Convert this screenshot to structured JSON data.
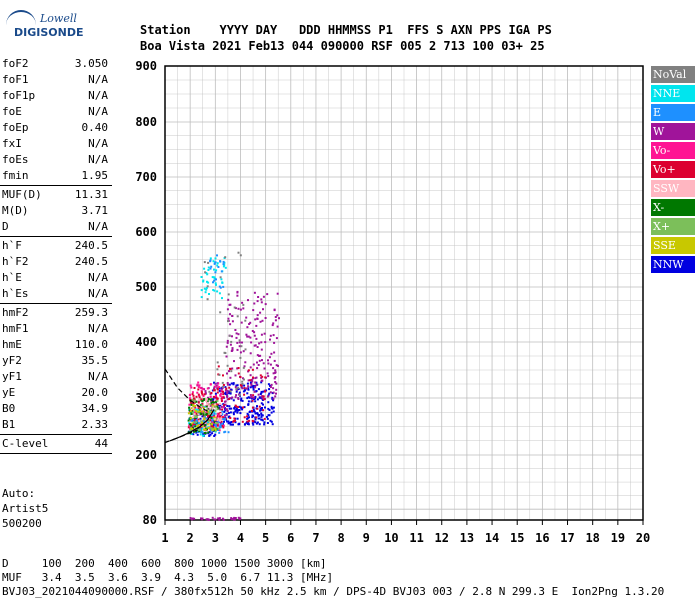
{
  "logo": {
    "top": "Lowell",
    "bottom": "DIGISONDE"
  },
  "header": {
    "line1": "Station    YYYY DAY   DDD HHMMSS P1  FFS S AXN PPS IGA PS",
    "line2": "Boa Vista 2021 Feb13 044 090000 RSF 005 2 713 100 03+ 25"
  },
  "params": [
    [
      {
        "k": "foF2",
        "v": "3.050"
      },
      {
        "k": "foF1",
        "v": "N/A"
      },
      {
        "k": "foF1p",
        "v": "N/A"
      },
      {
        "k": "foE",
        "v": "N/A"
      },
      {
        "k": "foEp",
        "v": "0.40"
      },
      {
        "k": "fxI",
        "v": "N/A"
      },
      {
        "k": "foEs",
        "v": "N/A"
      },
      {
        "k": "fmin",
        "v": "1.95"
      }
    ],
    [
      {
        "k": "MUF(D)",
        "v": "11.31"
      },
      {
        "k": "M(D)",
        "v": "3.71"
      },
      {
        "k": "D",
        "v": "N/A"
      }
    ],
    [
      {
        "k": "h`F",
        "v": "240.5"
      },
      {
        "k": "h`F2",
        "v": "240.5"
      },
      {
        "k": "h`E",
        "v": "N/A"
      },
      {
        "k": "h`Es",
        "v": "N/A"
      }
    ],
    [
      {
        "k": "hmF2",
        "v": "259.3"
      },
      {
        "k": "hmF1",
        "v": "N/A"
      },
      {
        "k": "hmE",
        "v": "110.0"
      },
      {
        "k": "yF2",
        "v": "35.5"
      },
      {
        "k": "yF1",
        "v": "N/A"
      },
      {
        "k": "yE",
        "v": "20.0"
      },
      {
        "k": "B0",
        "v": "34.9"
      },
      {
        "k": "B1",
        "v": "2.33"
      }
    ],
    [
      {
        "k": "C-level",
        "v": "44"
      }
    ]
  ],
  "auto": {
    "l1": "Auto:",
    "l2": "Artist5",
    "l3": "500200"
  },
  "legend": [
    {
      "label": "NoVal",
      "color": "#808080"
    },
    {
      "label": "NNE",
      "color": "#00e5ee"
    },
    {
      "label": "E",
      "color": "#1e90ff"
    },
    {
      "label": "W",
      "color": "#a0149a"
    },
    {
      "label": "Vo-",
      "color": "#ff1493"
    },
    {
      "label": "Vo+",
      "color": "#dc0030"
    },
    {
      "label": "SSW",
      "color": "#ffb6c1"
    },
    {
      "label": "X-",
      "color": "#007800"
    },
    {
      "label": "X+",
      "color": "#7cbf5a"
    },
    {
      "label": "SSE",
      "color": "#c8c800"
    },
    {
      "label": "NNW",
      "color": "#0000e0"
    }
  ],
  "footer": {
    "line1": "D     100  200  400  600  800 1000 1500 3000 [km]",
    "line2": "MUF   3.4  3.5  3.6  3.9  4.3  5.0  6.7 11.3 [MHz]",
    "line3": "BVJ03_2021044090000.RSF / 380fx512h 50 kHz 2.5 km / DPS-4D BVJ03 003 / 2.8 N 299.3 E  Ion2Png 1.3.20"
  },
  "chart_data": {
    "type": "scatter",
    "title": "",
    "xlabel": "",
    "ylabel": "",
    "xlim": [
      1,
      20
    ],
    "ylim": [
      80,
      900
    ],
    "x_ticks": [
      1,
      2,
      3,
      4,
      5,
      6,
      7,
      8,
      9,
      10,
      11,
      12,
      13,
      14,
      15,
      16,
      17,
      18,
      19,
      20
    ],
    "y_ticks": [
      80,
      200,
      300,
      400,
      500,
      600,
      700,
      800,
      900
    ],
    "grid": true,
    "clusters": [
      {
        "name": "NNW",
        "fmin": 2.8,
        "fmax": 5.3,
        "hmin": 255,
        "hmax": 330,
        "n": 260
      },
      {
        "name": "NNW",
        "fmin": 1.9,
        "fmax": 3.0,
        "hmin": 235,
        "hmax": 270,
        "n": 60
      },
      {
        "name": "W",
        "fmin": 3.4,
        "fmax": 5.5,
        "hmin": 300,
        "hmax": 500,
        "n": 200
      },
      {
        "name": "W",
        "fmin": 2.2,
        "fmax": 3.5,
        "hmin": 270,
        "hmax": 330,
        "n": 50
      },
      {
        "name": "Vo-",
        "fmin": 1.9,
        "fmax": 3.3,
        "hmin": 245,
        "hmax": 330,
        "n": 140
      },
      {
        "name": "Vo+",
        "fmin": 1.9,
        "fmax": 3.3,
        "hmin": 250,
        "hmax": 320,
        "n": 110
      },
      {
        "name": "Vo+",
        "fmin": 3.0,
        "fmax": 5.0,
        "hmin": 260,
        "hmax": 360,
        "n": 60
      },
      {
        "name": "NNE",
        "fmin": 2.4,
        "fmax": 3.4,
        "hmin": 480,
        "hmax": 560,
        "n": 45
      },
      {
        "name": "NNE",
        "fmin": 1.9,
        "fmax": 3.0,
        "hmin": 235,
        "hmax": 290,
        "n": 40
      },
      {
        "name": "E",
        "fmin": 2.0,
        "fmax": 3.5,
        "hmin": 240,
        "hmax": 280,
        "n": 50
      },
      {
        "name": "E",
        "fmin": 2.7,
        "fmax": 3.3,
        "hmin": 500,
        "hmax": 560,
        "n": 20
      },
      {
        "name": "X-",
        "fmin": 1.9,
        "fmax": 3.1,
        "hmin": 240,
        "hmax": 300,
        "n": 70
      },
      {
        "name": "X+",
        "fmin": 1.9,
        "fmax": 3.1,
        "hmin": 245,
        "hmax": 300,
        "n": 50
      },
      {
        "name": "SSE",
        "fmin": 1.9,
        "fmax": 3.0,
        "hmin": 245,
        "hmax": 290,
        "n": 40
      },
      {
        "name": "SSW",
        "fmin": 2.0,
        "fmax": 3.2,
        "hmin": 255,
        "hmax": 300,
        "n": 30
      },
      {
        "name": "NoVal",
        "fmin": 2.5,
        "fmax": 4.2,
        "hmin": 300,
        "hmax": 600,
        "n": 40
      },
      {
        "name": "W",
        "fmin": 1.9,
        "fmax": 4.0,
        "hmin": 82,
        "hmax": 86,
        "n": 30
      }
    ],
    "traces": [
      {
        "name": "dashed-upper",
        "style": "dashed",
        "points": [
          [
            1,
            352
          ],
          [
            1.5,
            318
          ],
          [
            2.0,
            296
          ],
          [
            2.4,
            284
          ],
          [
            2.8,
            274
          ]
        ]
      },
      {
        "name": "dashed-lower",
        "style": "dashed",
        "points": [
          [
            1,
            222
          ],
          [
            1.5,
            230
          ],
          [
            1.9,
            237
          ],
          [
            2.3,
            244
          ]
        ]
      },
      {
        "name": "solid-trace",
        "style": "solid",
        "points": [
          [
            1.2,
            225
          ],
          [
            1.6,
            232
          ],
          [
            2.0,
            240
          ],
          [
            2.4,
            250
          ],
          [
            2.7,
            262
          ],
          [
            2.95,
            280
          ]
        ]
      }
    ]
  }
}
